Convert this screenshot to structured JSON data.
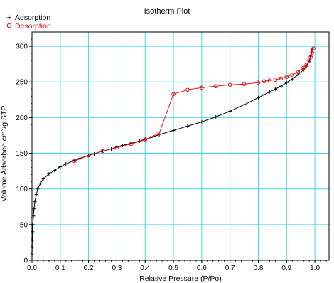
{
  "chart_data": {
    "type": "scatter",
    "title": "Isotherm Plot",
    "xlabel": "Relative Pressure (P/Po)",
    "ylabel": "Volume Adsorbed cm³/g STP",
    "xlim": [
      0.0,
      1.05
    ],
    "ylim": [
      0,
      320
    ],
    "xticks": [
      "0.0",
      "0.1",
      "0.2",
      "0.3",
      "0.4",
      "0.5",
      "0.6",
      "0.7",
      "0.8",
      "0.9",
      "1.0"
    ],
    "yticks": [
      "0",
      "50",
      "100",
      "150",
      "200",
      "250",
      "300"
    ],
    "grid": true,
    "legend_position": "top-left",
    "series": [
      {
        "name": "Adsorption",
        "marker": "plus",
        "color": "#000000",
        "x": [
          0.0002,
          0.0005,
          0.001,
          0.002,
          0.003,
          0.005,
          0.007,
          0.01,
          0.015,
          0.02,
          0.03,
          0.04,
          0.06,
          0.08,
          0.1,
          0.12,
          0.15,
          0.17,
          0.2,
          0.22,
          0.25,
          0.28,
          0.3,
          0.32,
          0.35,
          0.38,
          0.4,
          0.42,
          0.45,
          0.5,
          0.55,
          0.6,
          0.65,
          0.7,
          0.75,
          0.8,
          0.82,
          0.84,
          0.86,
          0.88,
          0.9,
          0.92,
          0.94,
          0.96,
          0.97,
          0.98,
          0.985,
          0.99
        ],
        "y": [
          8,
          18,
          28,
          40,
          50,
          62,
          72,
          82,
          92,
          100,
          108,
          114,
          121,
          126,
          131,
          135,
          140,
          143,
          147,
          149,
          153,
          156,
          159,
          161,
          164,
          167,
          170,
          172,
          176,
          182,
          188,
          194,
          201,
          209,
          218,
          228,
          232,
          236,
          240,
          244,
          249,
          254,
          260,
          267,
          272,
          279,
          286,
          296
        ]
      },
      {
        "name": "Desorption",
        "marker": "circle",
        "color": "#e0181c",
        "x": [
          0.995,
          0.99,
          0.985,
          0.98,
          0.97,
          0.96,
          0.94,
          0.92,
          0.9,
          0.88,
          0.86,
          0.84,
          0.82,
          0.8,
          0.75,
          0.7,
          0.65,
          0.6,
          0.55,
          0.5,
          0.45,
          0.4,
          0.35,
          0.3,
          0.25,
          0.2,
          0.15
        ],
        "y": [
          297,
          291,
          285,
          280,
          274,
          270,
          264,
          260,
          257,
          255,
          253,
          252,
          251,
          249,
          247,
          246,
          244,
          242,
          239,
          233,
          178,
          169,
          163,
          158,
          153,
          147,
          139
        ]
      }
    ]
  }
}
